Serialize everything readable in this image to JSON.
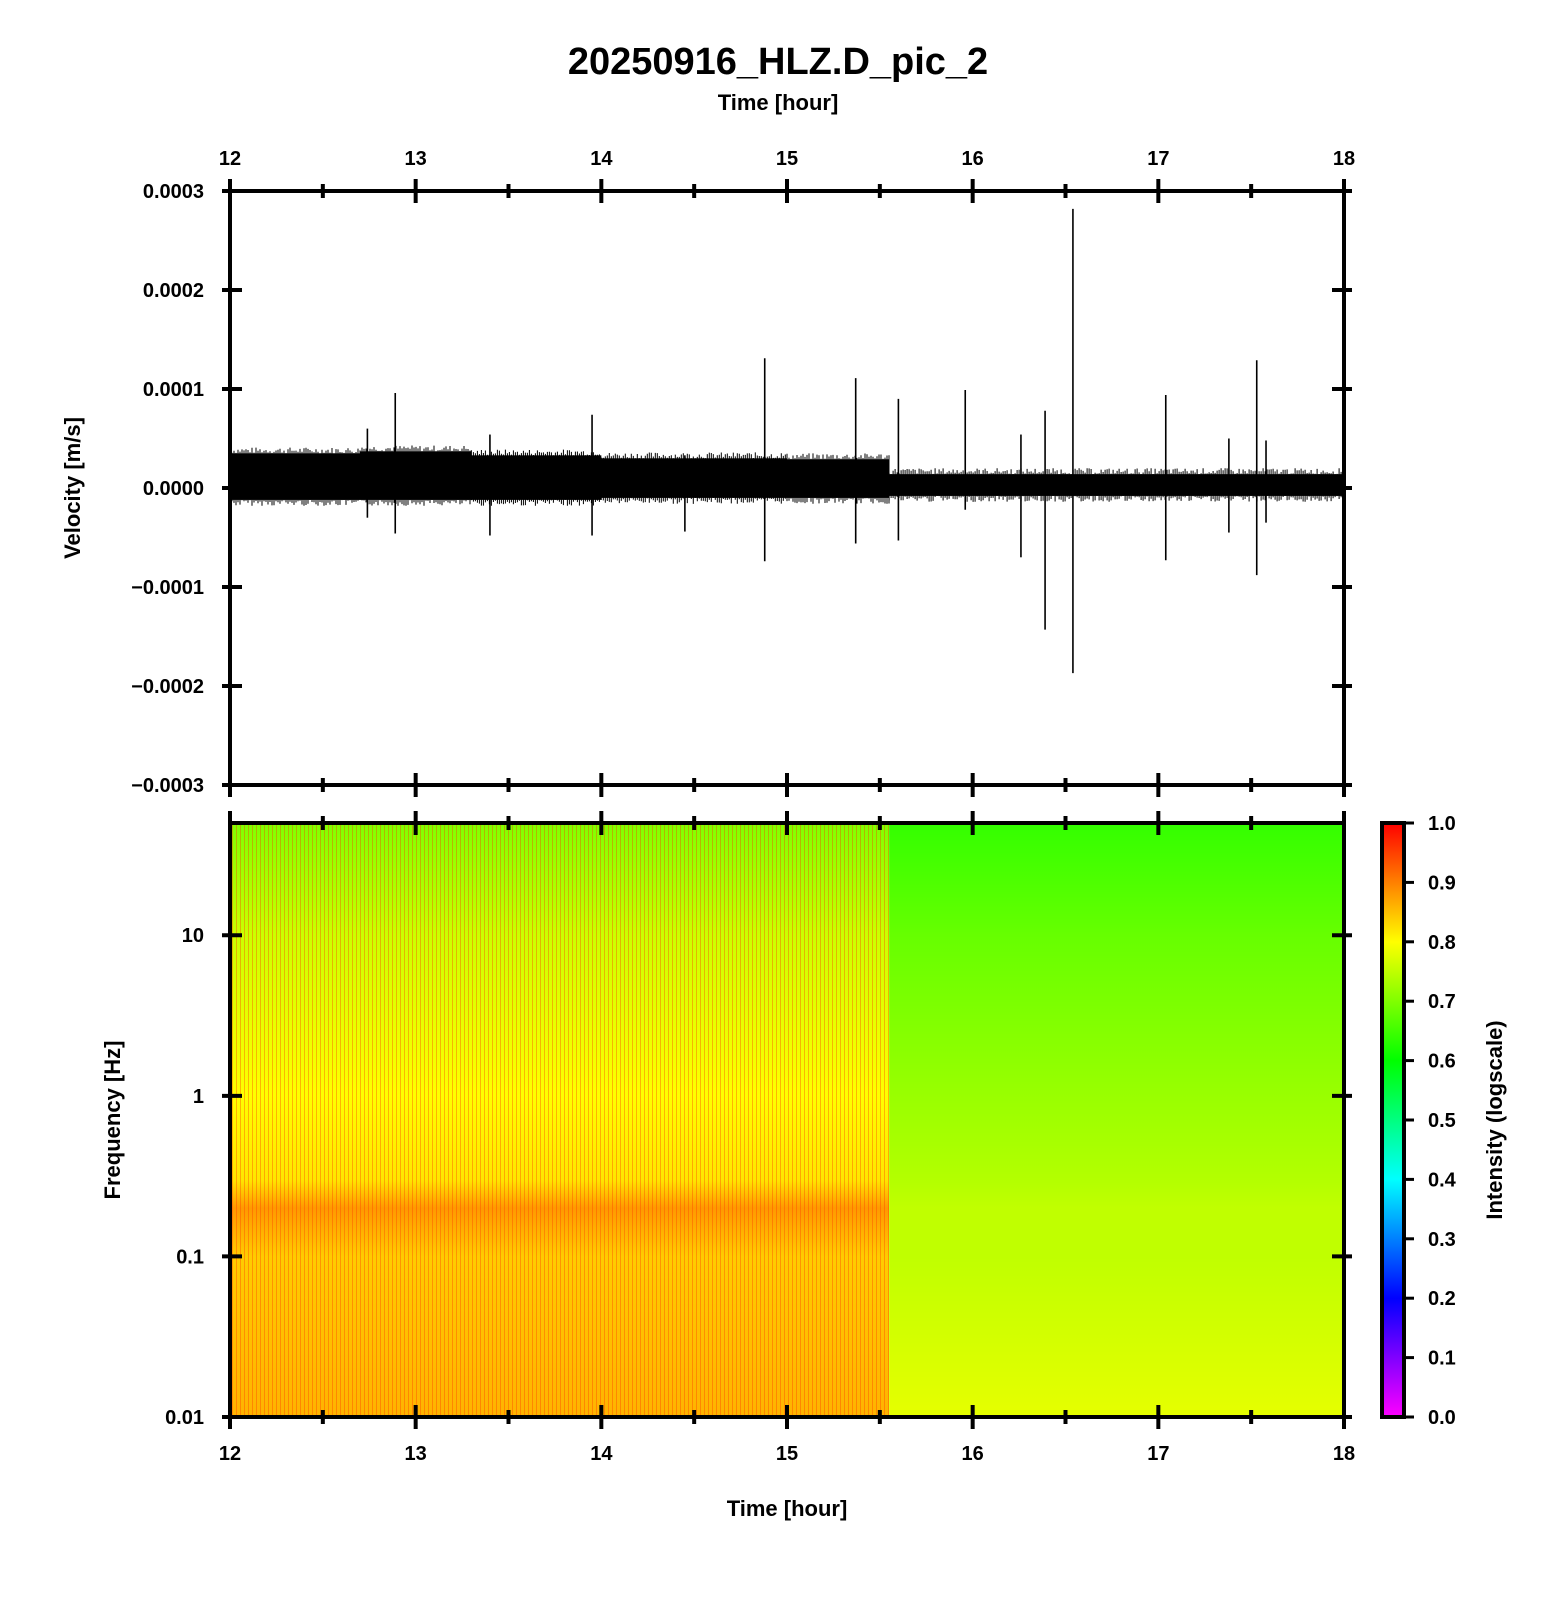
{
  "chart_data": [
    {
      "type": "line",
      "title": "20250916_HLZ.D_pic_2",
      "xlabel": "Time [hour]",
      "ylabel": "Velocity [m/s]",
      "xlim": [
        12,
        18
      ],
      "ylim": [
        -0.0003,
        0.0003
      ],
      "x_ticks": [
        "12",
        "13",
        "14",
        "15",
        "16",
        "17",
        "18"
      ],
      "y_ticks": [
        "−0.0003",
        "−0.0002",
        "−0.0001",
        "0.0000",
        "0.0001",
        "0.0002",
        "0.0003"
      ],
      "grid": false,
      "noise_band": [
        {
          "x_start": 12.0,
          "x_end": 12.7,
          "y_min": -1.2e-05,
          "y_max": 3.5e-05
        },
        {
          "x_start": 12.7,
          "x_end": 13.3,
          "y_min": -1.2e-05,
          "y_max": 3.7e-05
        },
        {
          "x_start": 13.3,
          "x_end": 14.0,
          "y_min": -1.2e-05,
          "y_max": 3.3e-05
        },
        {
          "x_start": 14.0,
          "x_end": 15.0,
          "y_min": -1e-05,
          "y_max": 3e-05
        },
        {
          "x_start": 15.0,
          "x_end": 15.55,
          "y_min": -1e-05,
          "y_max": 2.9e-05
        },
        {
          "x_start": 15.55,
          "x_end": 18.0,
          "y_min": -8e-06,
          "y_max": 1.4e-05
        }
      ],
      "spikes": [
        {
          "x": 12.74,
          "y_max": 6e-05,
          "y_min": -3e-05
        },
        {
          "x": 12.89,
          "y_max": 9.6e-05,
          "y_min": -4.6e-05
        },
        {
          "x": 13.4,
          "y_max": 5.4e-05,
          "y_min": -4.8e-05
        },
        {
          "x": 13.95,
          "y_max": 7.4e-05,
          "y_min": -4.8e-05
        },
        {
          "x": 14.45,
          "y_max": 3.3e-05,
          "y_min": -4.4e-05
        },
        {
          "x": 14.88,
          "y_max": 0.000131,
          "y_min": -7.4e-05
        },
        {
          "x": 15.37,
          "y_max": 0.000111,
          "y_min": -5.6e-05
        },
        {
          "x": 15.6,
          "y_max": 9e-05,
          "y_min": -5.3e-05
        },
        {
          "x": 15.96,
          "y_max": 9.9e-05,
          "y_min": -2.2e-05
        },
        {
          "x": 16.26,
          "y_max": 5.4e-05,
          "y_min": -7e-05
        },
        {
          "x": 16.39,
          "y_max": 7.8e-05,
          "y_min": -0.000143
        },
        {
          "x": 16.54,
          "y_max": 0.000282,
          "y_min": -0.000187
        },
        {
          "x": 17.04,
          "y_max": 9.4e-05,
          "y_min": -7.3e-05
        },
        {
          "x": 17.38,
          "y_max": 5e-05,
          "y_min": -4.5e-05
        },
        {
          "x": 17.53,
          "y_max": 0.000129,
          "y_min": -8.8e-05
        },
        {
          "x": 17.58,
          "y_max": 4.8e-05,
          "y_min": -3.5e-05
        }
      ]
    },
    {
      "type": "heatmap",
      "xlabel": "Time [hour]",
      "ylabel": "Frequency [Hz]",
      "xlim": [
        12,
        18
      ],
      "ylim": [
        0.01,
        50
      ],
      "y_scale": "log",
      "x_ticks": [
        "12",
        "13",
        "14",
        "15",
        "16",
        "17",
        "18"
      ],
      "y_ticks": [
        "0.01",
        "0.1",
        "1",
        "10"
      ],
      "colorbar": {
        "label": "Intensity (logscale)",
        "range": [
          0.0,
          1.0
        ],
        "ticks": [
          "0.0",
          "0.1",
          "0.2",
          "0.3",
          "0.4",
          "0.5",
          "0.6",
          "0.7",
          "0.8",
          "0.9",
          "1.0"
        ],
        "colors": [
          "#ff00ff",
          "#8000ff",
          "#0000ff",
          "#0080ff",
          "#00ffff",
          "#00ff80",
          "#00ff00",
          "#80ff00",
          "#ffff00",
          "#ff8000",
          "#ff0000"
        ]
      },
      "intensity_profile": [
        {
          "time_range": [
            12.0,
            15.55
          ],
          "points": [
            [
              0.01,
              0.86
            ],
            [
              0.1,
              0.84
            ],
            [
              0.2,
              0.88
            ],
            [
              0.3,
              0.82
            ],
            [
              1,
              0.8
            ],
            [
              10,
              0.76
            ],
            [
              50,
              0.7
            ]
          ]
        },
        {
          "time_range": [
            15.55,
            18.0
          ],
          "points": [
            [
              0.01,
              0.78
            ],
            [
              0.1,
              0.75
            ],
            [
              0.2,
              0.75
            ],
            [
              0.3,
              0.74
            ],
            [
              1,
              0.72
            ],
            [
              10,
              0.68
            ],
            [
              50,
              0.64
            ]
          ]
        }
      ]
    }
  ]
}
